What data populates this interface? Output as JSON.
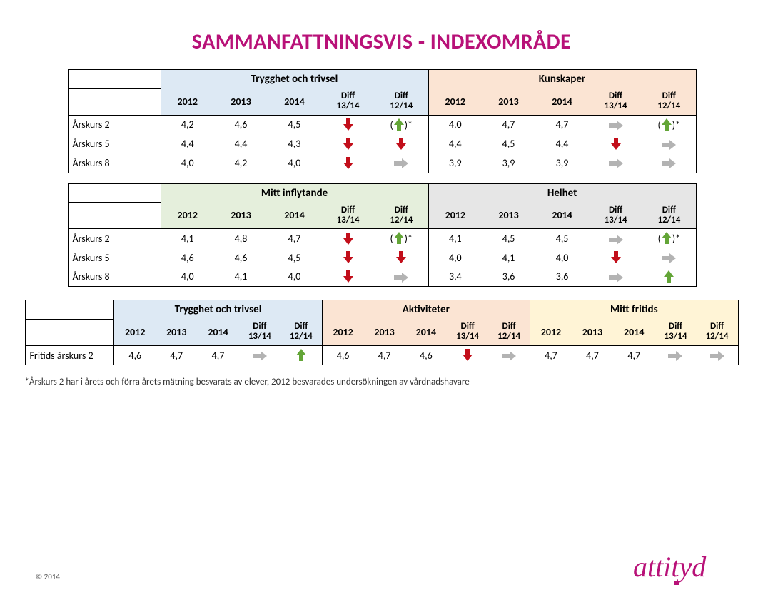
{
  "title": "SAMMANFATTNINGSVIS  - INDEXOMRÅDE",
  "title_color": "#b81178",
  "title_fontsize": 30,
  "colors": {
    "blue": "#dde9f4",
    "peach": "#fbe4d3",
    "green": "#e5efdc",
    "grey": "#e6e6e6",
    "yellow": "#fff4d6",
    "arrow_down": "#c20e1a",
    "arrow_up": "#63a537",
    "arrow_flat": "#b3b3b3",
    "border": "#000000"
  },
  "columns": {
    "years": [
      "2012",
      "2013",
      "2014"
    ],
    "diff1": "Diff\n13/14",
    "diff2": "Diff\n12/14"
  },
  "row_labels": [
    "Årskurs 2",
    "Årskurs 5",
    "Årskurs 8"
  ],
  "table1": {
    "left": {
      "group": "Trygghet och trivsel",
      "bg": "#dde9f4",
      "rows": [
        {
          "v": [
            "4,2",
            "4,6",
            "4,5"
          ],
          "d1": "down",
          "d2": "up-paren"
        },
        {
          "v": [
            "4,4",
            "4,4",
            "4,3"
          ],
          "d1": "down",
          "d2": "down"
        },
        {
          "v": [
            "4,0",
            "4,2",
            "4,0"
          ],
          "d1": "down",
          "d2": "flat"
        }
      ]
    },
    "right": {
      "group": "Kunskaper",
      "bg": "#fbe4d3",
      "rows": [
        {
          "v": [
            "4,0",
            "4,7",
            "4,7"
          ],
          "d1": "flat",
          "d2": "up-paren"
        },
        {
          "v": [
            "4,4",
            "4,5",
            "4,4"
          ],
          "d1": "down",
          "d2": "flat"
        },
        {
          "v": [
            "3,9",
            "3,9",
            "3,9"
          ],
          "d1": "flat",
          "d2": "flat"
        }
      ]
    }
  },
  "table2": {
    "left": {
      "group": "Mitt inflytande",
      "bg": "#e5efdc",
      "rows": [
        {
          "v": [
            "4,1",
            "4,8",
            "4,7"
          ],
          "d1": "down",
          "d2": "up-paren"
        },
        {
          "v": [
            "4,6",
            "4,6",
            "4,5"
          ],
          "d1": "down",
          "d2": "down"
        },
        {
          "v": [
            "4,0",
            "4,1",
            "4,0"
          ],
          "d1": "down",
          "d2": "flat"
        }
      ]
    },
    "right": {
      "group": "Helhet",
      "bg": "#e6e6e6",
      "rows": [
        {
          "v": [
            "4,1",
            "4,5",
            "4,5"
          ],
          "d1": "flat",
          "d2": "up-paren"
        },
        {
          "v": [
            "4,0",
            "4,1",
            "4,0"
          ],
          "d1": "down",
          "d2": "flat"
        },
        {
          "v": [
            "3,4",
            "3,6",
            "3,6"
          ],
          "d1": "flat",
          "d2": "up"
        }
      ]
    }
  },
  "table3": {
    "row_label": "Fritids årskurs 2",
    "groups": [
      {
        "group": "Trygghet och trivsel",
        "bg": "#dde9f4",
        "v": [
          "4,6",
          "4,7",
          "4,7"
        ],
        "d1": "flat",
        "d2": "up"
      },
      {
        "group": "Aktiviteter",
        "bg": "#fbe4d3",
        "v": [
          "4,6",
          "4,7",
          "4,6"
        ],
        "d1": "down",
        "d2": "flat"
      },
      {
        "group": "Mitt fritids",
        "bg": "#fff4d6",
        "v": [
          "4,7",
          "4,7",
          "4,7"
        ],
        "d1": "flat",
        "d2": "flat"
      }
    ]
  },
  "footnote": "*Årskurs 2 har i årets och förra årets mätning besvarats av elever, 2012 besvarades undersökningen av vårdnadshavare",
  "copyright": "© 2014",
  "logo_text": "attityd",
  "logo_color": "#b81178",
  "logo_fontsize": 40
}
